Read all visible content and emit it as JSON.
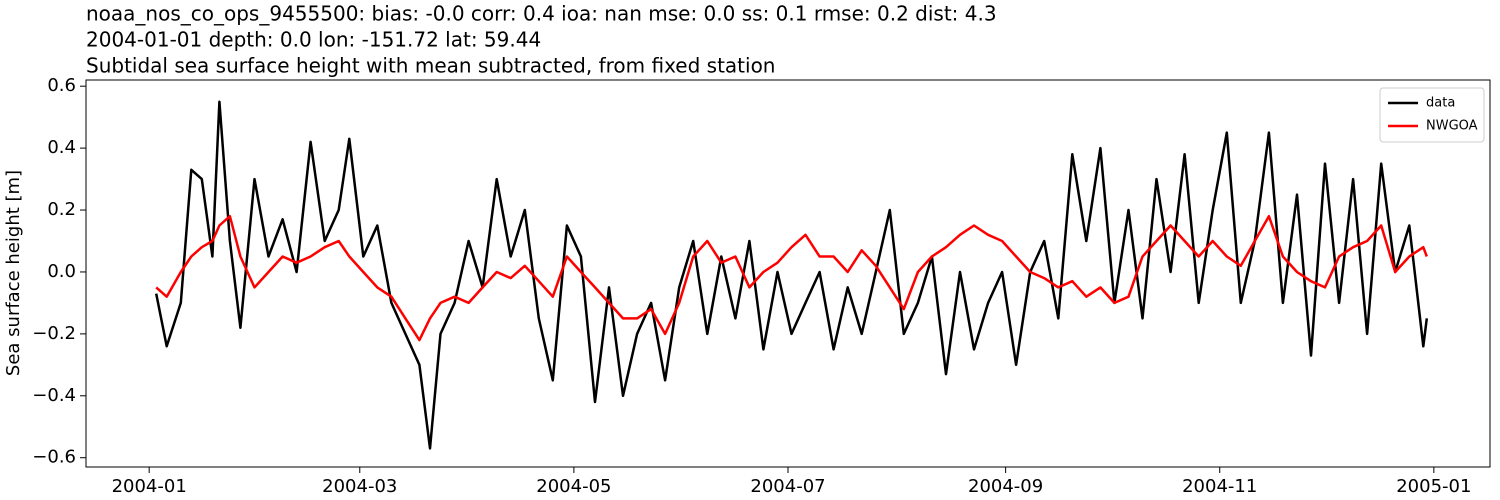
{
  "chart_data": {
    "type": "line",
    "title": "noaa_nos_co_ops_9455500: bias: -0.0  corr: 0.4  ioa: nan  mse: 0.0  ss: 0.1  rmse: 0.2  dist: 4.3",
    "subtitle": "2004-01-01 depth: 0.0 lon: -151.72 lat: 59.44",
    "subtitle2": "Subtidal sea surface height with mean subtracted, from fixed station",
    "y_label": "Sea surface height [m]",
    "legend": "upper right",
    "xlim": [
      "2003-12-14",
      "2005-01-17"
    ],
    "ylim": [
      -0.63,
      0.62
    ],
    "xticks": [
      {
        "value": "2004-01-01",
        "label": "2004-01"
      },
      {
        "value": "2004-03-01",
        "label": "2004-03"
      },
      {
        "value": "2004-05-01",
        "label": "2004-05"
      },
      {
        "value": "2004-07-01",
        "label": "2004-07"
      },
      {
        "value": "2004-09-01",
        "label": "2004-09"
      },
      {
        "value": "2004-11-01",
        "label": "2004-11"
      },
      {
        "value": "2005-01-01",
        "label": "2005-01"
      }
    ],
    "yticks": [
      {
        "value": -0.6,
        "label": "−0.6"
      },
      {
        "value": -0.4,
        "label": "−0.4"
      },
      {
        "value": -0.2,
        "label": "−0.2"
      },
      {
        "value": 0,
        "label": "0.0"
      },
      0.2,
      0.4,
      0.6
    ],
    "x": [
      "2004-01-03",
      "2004-01-06",
      "2004-01-10",
      "2004-01-13",
      "2004-01-16",
      "2004-01-19",
      "2004-01-21",
      "2004-01-24",
      "2004-01-27",
      "2004-01-31",
      "2004-02-04",
      "2004-02-08",
      "2004-02-12",
      "2004-02-16",
      "2004-02-20",
      "2004-02-24",
      "2004-02-27",
      "2004-03-02",
      "2004-03-06",
      "2004-03-10",
      "2004-03-14",
      "2004-03-18",
      "2004-03-21",
      "2004-03-24",
      "2004-03-28",
      "2004-04-01",
      "2004-04-05",
      "2004-04-09",
      "2004-04-13",
      "2004-04-17",
      "2004-04-21",
      "2004-04-25",
      "2004-04-29",
      "2004-05-03",
      "2004-05-07",
      "2004-05-11",
      "2004-05-15",
      "2004-05-19",
      "2004-05-23",
      "2004-05-27",
      "2004-05-31",
      "2004-06-04",
      "2004-06-08",
      "2004-06-12",
      "2004-06-16",
      "2004-06-20",
      "2004-06-24",
      "2004-06-28",
      "2004-07-02",
      "2004-07-06",
      "2004-07-10",
      "2004-07-14",
      "2004-07-18",
      "2004-07-22",
      "2004-07-26",
      "2004-07-30",
      "2004-08-03",
      "2004-08-07",
      "2004-08-11",
      "2004-08-15",
      "2004-08-19",
      "2004-08-23",
      "2004-08-27",
      "2004-08-31",
      "2004-09-04",
      "2004-09-08",
      "2004-09-12",
      "2004-09-16",
      "2004-09-20",
      "2004-09-24",
      "2004-09-28",
      "2004-10-02",
      "2004-10-06",
      "2004-10-10",
      "2004-10-14",
      "2004-10-18",
      "2004-10-22",
      "2004-10-26",
      "2004-10-30",
      "2004-11-03",
      "2004-11-07",
      "2004-11-11",
      "2004-11-15",
      "2004-11-19",
      "2004-11-23",
      "2004-11-27",
      "2004-12-01",
      "2004-12-05",
      "2004-12-09",
      "2004-12-13",
      "2004-12-17",
      "2004-12-21",
      "2004-12-25",
      "2004-12-29",
      "2004-12-30"
    ],
    "series": [
      {
        "name": "data",
        "color": "#000000",
        "values": [
          -0.07,
          -0.24,
          -0.1,
          0.33,
          0.3,
          0.05,
          0.55,
          0.1,
          -0.18,
          0.3,
          0.05,
          0.17,
          0.0,
          0.42,
          0.1,
          0.2,
          0.43,
          0.05,
          0.15,
          -0.1,
          -0.2,
          -0.3,
          -0.57,
          -0.2,
          -0.1,
          0.1,
          -0.05,
          0.3,
          0.05,
          0.2,
          -0.15,
          -0.35,
          0.15,
          0.05,
          -0.42,
          -0.05,
          -0.4,
          -0.2,
          -0.1,
          -0.35,
          -0.05,
          0.1,
          -0.2,
          0.05,
          -0.15,
          0.1,
          -0.25,
          0.0,
          -0.2,
          -0.1,
          0.0,
          -0.25,
          -0.05,
          -0.2,
          0.0,
          0.2,
          -0.2,
          -0.1,
          0.05,
          -0.33,
          0.0,
          -0.25,
          -0.1,
          0.0,
          -0.3,
          0.0,
          0.1,
          -0.15,
          0.38,
          0.1,
          0.4,
          -0.1,
          0.2,
          -0.15,
          0.3,
          0.0,
          0.38,
          -0.1,
          0.2,
          0.45,
          -0.1,
          0.1,
          0.45,
          -0.1,
          0.25,
          -0.27,
          0.35,
          -0.1,
          0.3,
          -0.2,
          0.35,
          0.0,
          0.15,
          -0.24,
          -0.15
        ]
      },
      {
        "name": "NWGOA",
        "color": "#ff0000",
        "values": [
          -0.05,
          -0.08,
          0.0,
          0.05,
          0.08,
          0.1,
          0.15,
          0.18,
          0.05,
          -0.05,
          0.0,
          0.05,
          0.03,
          0.05,
          0.08,
          0.1,
          0.05,
          0.0,
          -0.05,
          -0.08,
          -0.15,
          -0.22,
          -0.15,
          -0.1,
          -0.08,
          -0.1,
          -0.05,
          0.0,
          -0.02,
          0.02,
          -0.03,
          -0.08,
          0.05,
          0.0,
          -0.05,
          -0.1,
          -0.15,
          -0.15,
          -0.12,
          -0.2,
          -0.1,
          0.05,
          0.1,
          0.03,
          0.05,
          -0.05,
          0.0,
          0.03,
          0.08,
          0.12,
          0.05,
          0.05,
          0.0,
          0.07,
          0.02,
          -0.05,
          -0.12,
          0.0,
          0.05,
          0.08,
          0.12,
          0.15,
          0.12,
          0.1,
          0.05,
          0.0,
          -0.02,
          -0.05,
          -0.03,
          -0.08,
          -0.05,
          -0.1,
          -0.08,
          0.05,
          0.1,
          0.15,
          0.1,
          0.05,
          0.1,
          0.05,
          0.02,
          0.1,
          0.18,
          0.05,
          0.0,
          -0.03,
          -0.05,
          0.05,
          0.08,
          0.1,
          0.15,
          0.0,
          0.05,
          0.08,
          0.05
        ]
      }
    ]
  }
}
